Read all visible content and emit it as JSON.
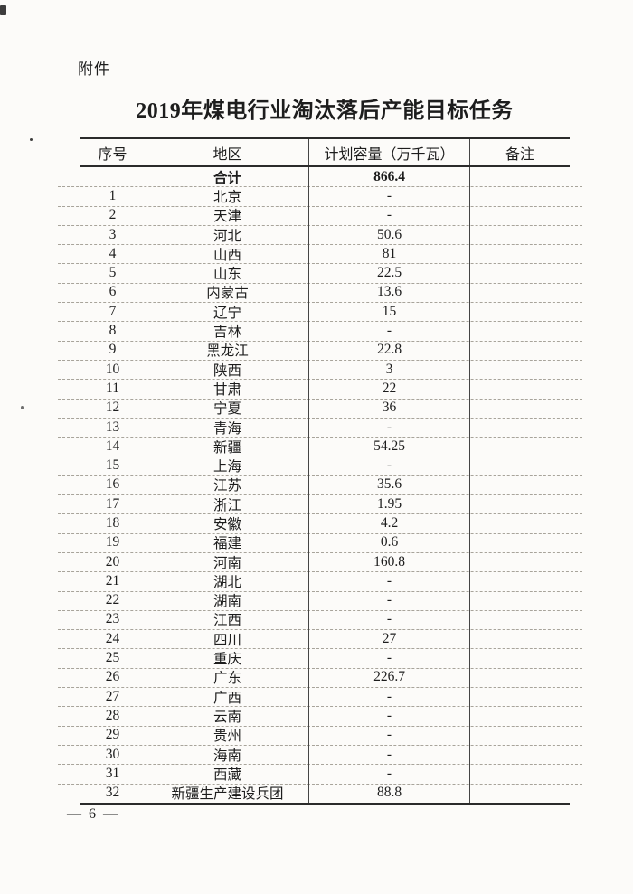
{
  "page": {
    "attachment_label": "附件",
    "title": "2019年煤电行业淘汰落后产能目标任务",
    "page_number": "— 6 —"
  },
  "table": {
    "headers": [
      "序号",
      "地区",
      "计划容量（万千瓦）",
      "备注"
    ],
    "total_row": {
      "index": "",
      "region": "合计",
      "capacity": "866.4",
      "remark": ""
    },
    "rows": [
      {
        "index": "1",
        "region": "北京",
        "capacity": "-",
        "remark": ""
      },
      {
        "index": "2",
        "region": "天津",
        "capacity": "-",
        "remark": ""
      },
      {
        "index": "3",
        "region": "河北",
        "capacity": "50.6",
        "remark": ""
      },
      {
        "index": "4",
        "region": "山西",
        "capacity": "81",
        "remark": ""
      },
      {
        "index": "5",
        "region": "山东",
        "capacity": "22.5",
        "remark": ""
      },
      {
        "index": "6",
        "region": "内蒙古",
        "capacity": "13.6",
        "remark": ""
      },
      {
        "index": "7",
        "region": "辽宁",
        "capacity": "15",
        "remark": ""
      },
      {
        "index": "8",
        "region": "吉林",
        "capacity": "-",
        "remark": ""
      },
      {
        "index": "9",
        "region": "黑龙江",
        "capacity": "22.8",
        "remark": ""
      },
      {
        "index": "10",
        "region": "陕西",
        "capacity": "3",
        "remark": ""
      },
      {
        "index": "11",
        "region": "甘肃",
        "capacity": "22",
        "remark": ""
      },
      {
        "index": "12",
        "region": "宁夏",
        "capacity": "36",
        "remark": ""
      },
      {
        "index": "13",
        "region": "青海",
        "capacity": "-",
        "remark": ""
      },
      {
        "index": "14",
        "region": "新疆",
        "capacity": "54.25",
        "remark": ""
      },
      {
        "index": "15",
        "region": "上海",
        "capacity": "-",
        "remark": ""
      },
      {
        "index": "16",
        "region": "江苏",
        "capacity": "35.6",
        "remark": ""
      },
      {
        "index": "17",
        "region": "浙江",
        "capacity": "1.95",
        "remark": ""
      },
      {
        "index": "18",
        "region": "安徽",
        "capacity": "4.2",
        "remark": ""
      },
      {
        "index": "19",
        "region": "福建",
        "capacity": "0.6",
        "remark": ""
      },
      {
        "index": "20",
        "region": "河南",
        "capacity": "160.8",
        "remark": ""
      },
      {
        "index": "21",
        "region": "湖北",
        "capacity": "-",
        "remark": ""
      },
      {
        "index": "22",
        "region": "湖南",
        "capacity": "-",
        "remark": ""
      },
      {
        "index": "23",
        "region": "江西",
        "capacity": "-",
        "remark": ""
      },
      {
        "index": "24",
        "region": "四川",
        "capacity": "27",
        "remark": ""
      },
      {
        "index": "25",
        "region": "重庆",
        "capacity": "-",
        "remark": ""
      },
      {
        "index": "26",
        "region": "广东",
        "capacity": "226.7",
        "remark": ""
      },
      {
        "index": "27",
        "region": "广西",
        "capacity": "-",
        "remark": ""
      },
      {
        "index": "28",
        "region": "云南",
        "capacity": "-",
        "remark": ""
      },
      {
        "index": "29",
        "region": "贵州",
        "capacity": "-",
        "remark": ""
      },
      {
        "index": "30",
        "region": "海南",
        "capacity": "-",
        "remark": ""
      },
      {
        "index": "31",
        "region": "西藏",
        "capacity": "-",
        "remark": ""
      },
      {
        "index": "32",
        "region": "新疆生产建设兵团",
        "capacity": "88.8",
        "remark": ""
      }
    ]
  }
}
